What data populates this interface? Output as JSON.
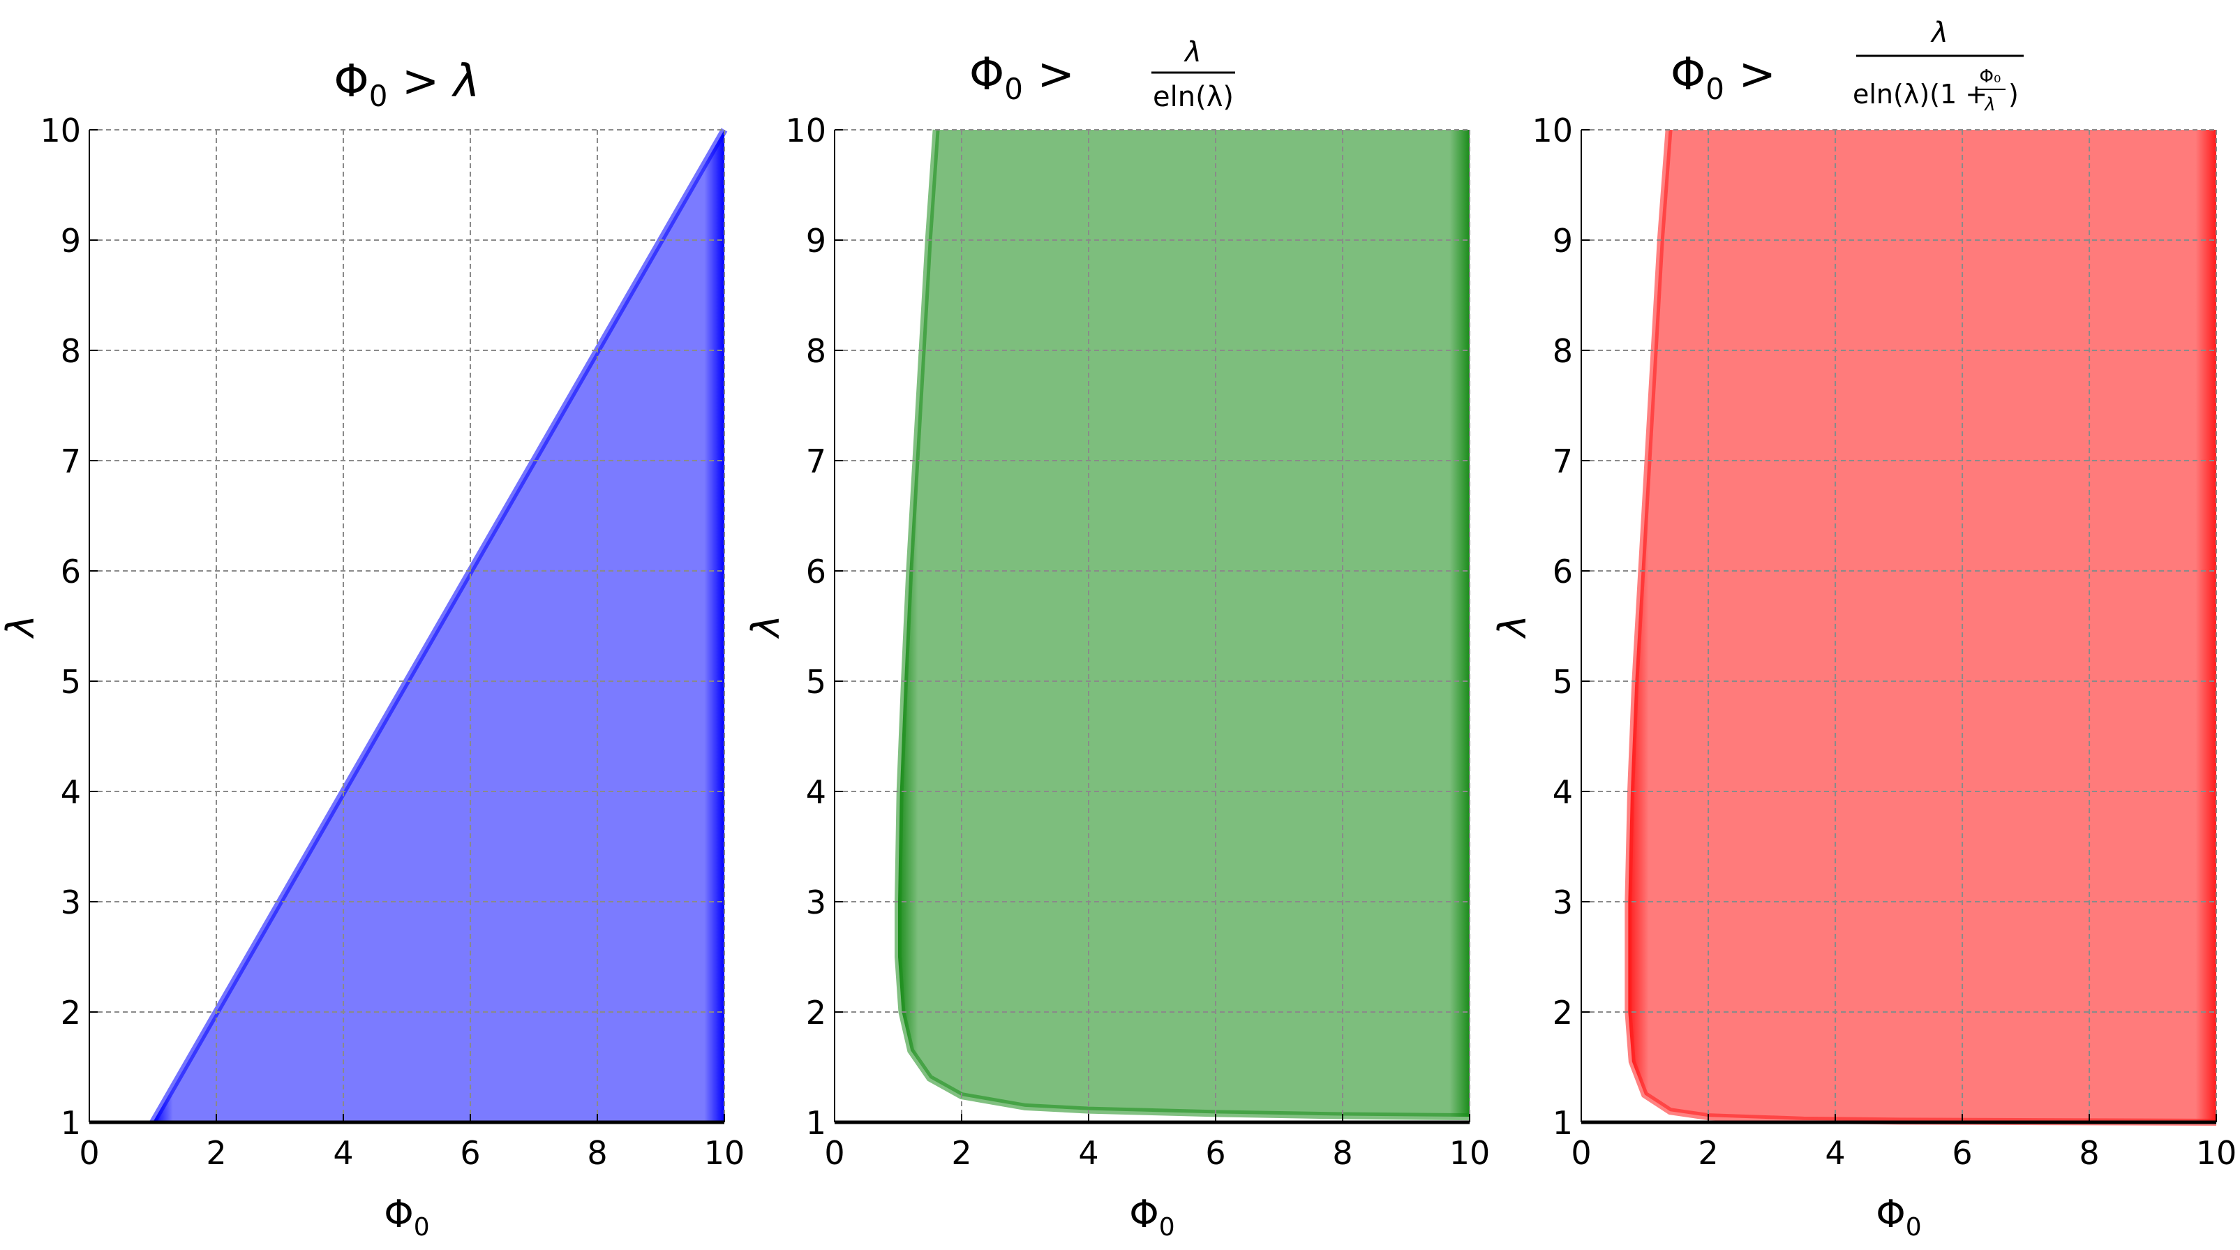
{
  "chart_data": [
    {
      "type": "area",
      "title": "Φ₀ > λ",
      "title_parts": {
        "lhs": "Φ",
        "sub": "0",
        "op": ">",
        "rhs": "λ"
      },
      "xlabel": "Φ",
      "xlabel_sub": "0",
      "ylabel": "λ",
      "xlim": [
        0,
        10
      ],
      "ylim": [
        1,
        10
      ],
      "xticks": [
        "0",
        "2",
        "4",
        "6",
        "8",
        "10"
      ],
      "yticks": [
        "1",
        "2",
        "3",
        "4",
        "5",
        "6",
        "7",
        "8",
        "9",
        "10"
      ],
      "grid": true,
      "fill_color": "#7b7bff",
      "edge_color": "#0000ff",
      "boundary": {
        "region": "right",
        "points": [
          [
            1,
            1
          ],
          [
            2,
            2
          ],
          [
            3,
            3
          ],
          [
            4,
            4
          ],
          [
            5,
            5
          ],
          [
            6,
            6
          ],
          [
            7,
            7
          ],
          [
            8,
            8
          ],
          [
            9,
            9
          ],
          [
            10,
            10
          ]
        ]
      }
    },
    {
      "type": "area",
      "title": "Φ₀ > λ / (e ln(λ))",
      "title_parts": {
        "lhs": "Φ",
        "sub": "0",
        "op": ">",
        "num": "λ",
        "den": "eln(λ)"
      },
      "xlabel": "Φ",
      "xlabel_sub": "0",
      "ylabel": "λ",
      "xlim": [
        0,
        10
      ],
      "ylim": [
        1,
        10
      ],
      "xticks": [
        "0",
        "2",
        "4",
        "6",
        "8",
        "10"
      ],
      "yticks": [
        "1",
        "2",
        "3",
        "4",
        "5",
        "6",
        "7",
        "8",
        "9",
        "10"
      ],
      "grid": true,
      "fill_color": "#7dbe7d",
      "edge_color": "#1a8c1a",
      "boundary": {
        "region": "right",
        "points": [
          [
            10,
            1.05
          ],
          [
            8,
            1.06
          ],
          [
            6,
            1.08
          ],
          [
            4,
            1.11
          ],
          [
            3,
            1.14
          ],
          [
            2,
            1.24
          ],
          [
            1.5,
            1.4
          ],
          [
            1.2,
            1.65
          ],
          [
            1.06,
            2.0
          ],
          [
            1.0,
            2.5
          ],
          [
            1.0,
            3.0
          ],
          [
            1.03,
            4.0
          ],
          [
            1.1,
            5.0
          ],
          [
            1.18,
            6.0
          ],
          [
            1.28,
            7.0
          ],
          [
            1.38,
            8.0
          ],
          [
            1.48,
            9.0
          ],
          [
            1.6,
            10.0
          ]
        ]
      }
    },
    {
      "type": "area",
      "title": "Φ₀ > λ / (e ln(λ)(1 + Φ₀/λ))",
      "title_parts": {
        "lhs": "Φ",
        "sub": "0",
        "op": ">",
        "num": "λ",
        "den_left": "eln(λ)(1 +",
        "den_frac_num": "Φ₀",
        "den_frac_den": "λ",
        "den_right": ")"
      },
      "xlabel": "Φ",
      "xlabel_sub": "0",
      "ylabel": "λ",
      "xlim": [
        0,
        10
      ],
      "ylim": [
        1,
        10
      ],
      "xticks": [
        "0",
        "2",
        "4",
        "6",
        "8",
        "10"
      ],
      "yticks": [
        "1",
        "2",
        "3",
        "4",
        "5",
        "6",
        "7",
        "8",
        "9",
        "10"
      ],
      "grid": true,
      "fill_color": "#ff7b7b",
      "edge_color": "#ff1a1a",
      "boundary": {
        "region": "right",
        "points": [
          [
            10,
            1.0
          ],
          [
            5,
            1.01
          ],
          [
            3.5,
            1.02
          ],
          [
            2,
            1.05
          ],
          [
            1.4,
            1.1
          ],
          [
            1.0,
            1.25
          ],
          [
            0.8,
            1.55
          ],
          [
            0.74,
            2.0
          ],
          [
            0.74,
            3.0
          ],
          [
            0.78,
            4.0
          ],
          [
            0.85,
            5.0
          ],
          [
            0.95,
            6.0
          ],
          [
            1.05,
            7.0
          ],
          [
            1.15,
            8.0
          ],
          [
            1.25,
            9.0
          ],
          [
            1.38,
            10.0
          ]
        ]
      }
    }
  ]
}
